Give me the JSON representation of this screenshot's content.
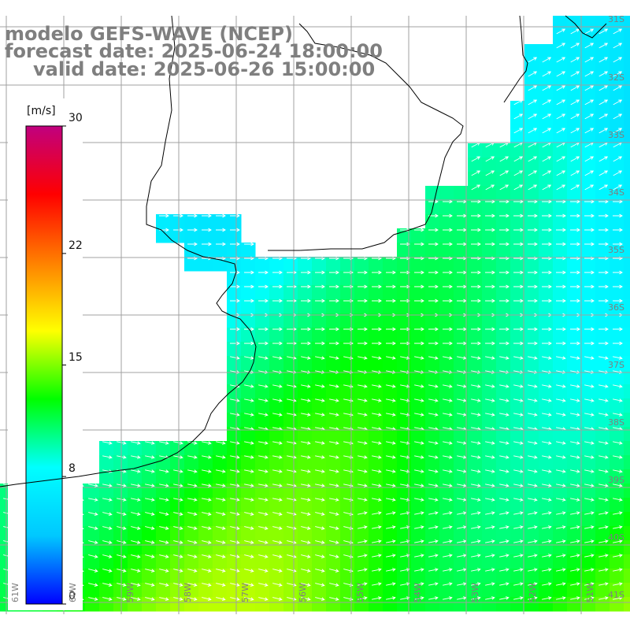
{
  "title": {
    "line1": "modelo GEFS-WAVE (NCEP)",
    "line2": "forecast date: 2025-06-24 18:00:00",
    "line3": "valid date: 2025-06-26 15:00:00"
  },
  "colorbar": {
    "units": "[m/s]",
    "ticks": [
      {
        "label": "30",
        "value": 30
      },
      {
        "label": "22",
        "value": 22
      },
      {
        "label": "15",
        "value": 15
      },
      {
        "label": "8",
        "value": 8
      },
      {
        "label": "0",
        "value": 0
      }
    ],
    "min": 0,
    "max": 30,
    "colors": [
      "#0000ff",
      "#00c8ff",
      "#00ffff",
      "#00ff00",
      "#ffff00",
      "#ff8000",
      "#ff0000",
      "#c0007f"
    ]
  },
  "lat_labels": [
    "31S",
    "32S",
    "33S",
    "34S",
    "35S",
    "36S",
    "37S",
    "38S",
    "39S",
    "40S",
    "41S"
  ],
  "lon_labels": [
    "61W",
    "60W",
    "59W",
    "58W",
    "57W",
    "56W",
    "55W",
    "54W",
    "53W",
    "52W",
    "51W"
  ],
  "colors": {
    "title": "#7f7f7f",
    "coast": "#000000",
    "grid": "#a0a0a0",
    "land": "#ffffff",
    "arrows": "#ffffff"
  },
  "field_description": {
    "variable": "wind speed",
    "units": "m/s",
    "min_shown": 5,
    "max_shown": 16
  }
}
